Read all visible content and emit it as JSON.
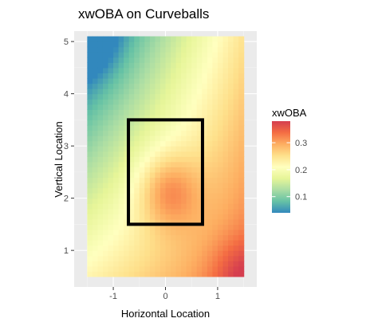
{
  "chart_data": {
    "type": "heatmap",
    "title": "xwOBA on Curveballs",
    "xlabel": "Horizontal Location",
    "ylabel": "Vertical Location",
    "xlim": [
      -1.75,
      1.75
    ],
    "ylim": [
      0.3,
      5.2
    ],
    "data_extent": {
      "x": [
        -1.5,
        1.5
      ],
      "y": [
        0.5,
        5.1
      ]
    },
    "x_ticks": [
      -1,
      0,
      1
    ],
    "y_ticks": [
      1,
      2,
      3,
      4,
      5
    ],
    "x_tick_labels": [
      "-1",
      "0",
      "1"
    ],
    "y_tick_labels": [
      "1",
      "2",
      "3",
      "4",
      "5"
    ],
    "fill_scale": {
      "name": "xwOBA",
      "min": 0.04,
      "max": 0.38,
      "breaks": [
        0.1,
        0.2,
        0.3
      ],
      "break_labels": [
        "0.1",
        "0.2",
        "0.3"
      ],
      "palette": "Spectral (reversed)"
    },
    "surface_samples": [
      {
        "x": -1.5,
        "y": 5.0,
        "xwoba": 0.05
      },
      {
        "x": -1.5,
        "y": 4.0,
        "xwoba": 0.1
      },
      {
        "x": -1.5,
        "y": 3.0,
        "xwoba": 0.13
      },
      {
        "x": -1.5,
        "y": 1.0,
        "xwoba": 0.17
      },
      {
        "x": -0.5,
        "y": 4.5,
        "xwoba": 0.16
      },
      {
        "x": 0.0,
        "y": 5.0,
        "xwoba": 0.21
      },
      {
        "x": 0.0,
        "y": 2.2,
        "xwoba": 0.36
      },
      {
        "x": 1.5,
        "y": 5.0,
        "xwoba": 0.29
      },
      {
        "x": 1.5,
        "y": 3.0,
        "xwoba": 0.3
      },
      {
        "x": 1.5,
        "y": 0.6,
        "xwoba": 0.38
      }
    ],
    "strike_zone": {
      "x": [
        -0.71,
        0.71
      ],
      "y": [
        1.5,
        3.5
      ]
    },
    "grid": true,
    "legend_position": "right"
  }
}
